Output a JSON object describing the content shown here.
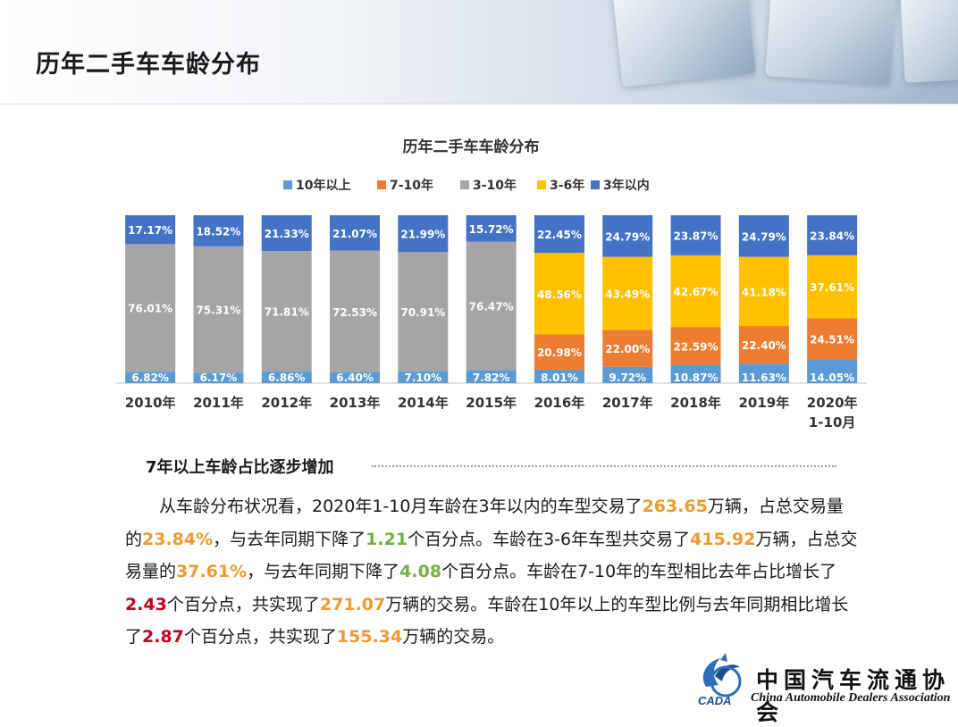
{
  "page": {
    "title": "历年二手车车龄分布"
  },
  "chart_data": {
    "type": "bar",
    "stacked": true,
    "percent_stacked": true,
    "title": "历年二手车车龄分布",
    "legend_position": "top",
    "categories": [
      "2010年",
      "2011年",
      "2012年",
      "2013年",
      "2014年",
      "2015年",
      "2016年",
      "2017年",
      "2018年",
      "2019年",
      "2020年\n1-10月"
    ],
    "series": [
      {
        "name": "10年以上",
        "color": "#5b9bd5",
        "values": [
          6.82,
          6.17,
          6.86,
          6.4,
          7.1,
          7.82,
          8.01,
          9.72,
          10.87,
          11.63,
          14.05
        ],
        "labels": [
          "6.82%",
          "6.17%",
          "6.86%",
          "6.40%",
          "7.10%",
          "7.82%",
          "8.01%",
          "9.72%",
          "10.87%",
          "11.63%",
          "14.05%"
        ]
      },
      {
        "name": "7-10年",
        "color": "#ed7d31",
        "values": [
          null,
          null,
          null,
          null,
          null,
          null,
          20.98,
          22.0,
          22.59,
          22.4,
          24.51
        ],
        "labels": [
          "",
          "",
          "",
          "",
          "",
          "",
          "20.98%",
          "22.00%",
          "22.59%",
          "22.40%",
          "24.51%"
        ]
      },
      {
        "name": "3-10年",
        "color": "#a5a5a5",
        "values": [
          76.01,
          75.31,
          71.81,
          72.53,
          70.91,
          76.47,
          null,
          null,
          null,
          null,
          null
        ],
        "labels": [
          "76.01%",
          "75.31%",
          "71.81%",
          "72.53%",
          "70.91%",
          "76.47%",
          "",
          "",
          "",
          "",
          ""
        ]
      },
      {
        "name": "3-6年",
        "color": "#ffc000",
        "values": [
          null,
          null,
          null,
          null,
          null,
          null,
          48.56,
          43.49,
          42.67,
          41.18,
          37.61
        ],
        "labels": [
          "",
          "",
          "",
          "",
          "",
          "",
          "48.56%",
          "43.49%",
          "42.67%",
          "41.18%",
          "37.61%"
        ]
      },
      {
        "name": "3年以内",
        "color": "#4472c4",
        "values": [
          17.17,
          18.52,
          21.33,
          21.07,
          21.99,
          15.72,
          22.45,
          24.79,
          23.87,
          24.79,
          23.84
        ],
        "labels": [
          "17.17%",
          "18.52%",
          "21.33%",
          "21.07%",
          "21.99%",
          "15.72%",
          "22.45%",
          "24.79%",
          "23.87%",
          "24.79%",
          "23.84%"
        ]
      }
    ]
  },
  "section": {
    "heading": "7年以上车龄占比逐步增加",
    "paragraph": [
      {
        "text": "从车龄分布状况看，2020年1-10月车龄在3年以内的车型交易了",
        "style": ""
      },
      {
        "text": "263.65",
        "style": "orange"
      },
      {
        "text": "万辆，占总交易量的",
        "style": ""
      },
      {
        "text": "23.84%",
        "style": "orange"
      },
      {
        "text": "，与去年同期下降了",
        "style": ""
      },
      {
        "text": "1.21",
        "style": "green"
      },
      {
        "text": "个百分点。车龄在3-6年车型共交易了",
        "style": ""
      },
      {
        "text": "415.92",
        "style": "orange"
      },
      {
        "text": "万辆，占总交易量的",
        "style": ""
      },
      {
        "text": "37.61%",
        "style": "orange"
      },
      {
        "text": "，与去年同期下降了",
        "style": ""
      },
      {
        "text": "4.08",
        "style": "green"
      },
      {
        "text": "个百分点。车龄在7-10年的车型相比去年占比增长了",
        "style": ""
      },
      {
        "text": "2.43",
        "style": "red"
      },
      {
        "text": "个百分点，共实现了",
        "style": ""
      },
      {
        "text": "271.07",
        "style": "orange"
      },
      {
        "text": "万辆的交易。车龄在10年以上的车型比例与去年同期相比增长了",
        "style": ""
      },
      {
        "text": "2.87",
        "style": "red"
      },
      {
        "text": "个百分点，共实现了",
        "style": ""
      },
      {
        "text": "155.34",
        "style": "orange"
      },
      {
        "text": "万辆的交易。",
        "style": ""
      }
    ]
  },
  "logo": {
    "cn": "中国汽车流通协会",
    "en": "China Automobile Dealers Association",
    "mark_text": "CADA"
  }
}
